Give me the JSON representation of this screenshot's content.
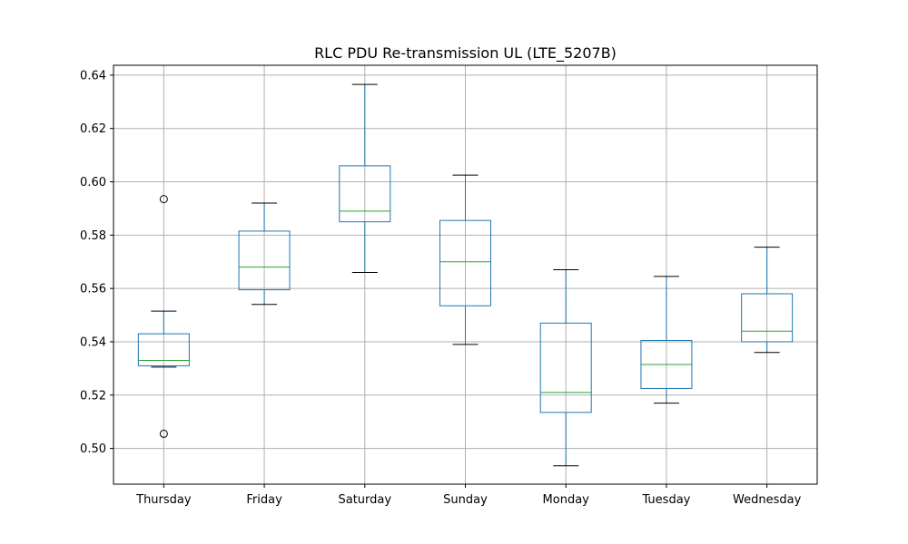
{
  "chart_data": {
    "type": "box",
    "title": "RLC PDU Re-transmission UL (LTE_5207B)",
    "xlabel": "",
    "ylabel": "",
    "categories": [
      "Thursday",
      "Friday",
      "Saturday",
      "Sunday",
      "Monday",
      "Tuesday",
      "Wednesday"
    ],
    "boxes": [
      {
        "whisker_low": 0.5305,
        "q1": 0.531,
        "median": 0.533,
        "q3": 0.543,
        "whisker_high": 0.5515,
        "outliers": [
          0.5935,
          0.5055
        ]
      },
      {
        "whisker_low": 0.554,
        "q1": 0.5595,
        "median": 0.568,
        "q3": 0.5815,
        "whisker_high": 0.592,
        "outliers": []
      },
      {
        "whisker_low": 0.566,
        "q1": 0.585,
        "median": 0.589,
        "q3": 0.606,
        "whisker_high": 0.6365,
        "outliers": []
      },
      {
        "whisker_low": 0.539,
        "q1": 0.5535,
        "median": 0.57,
        "q3": 0.5855,
        "whisker_high": 0.6025,
        "outliers": []
      },
      {
        "whisker_low": 0.4935,
        "q1": 0.5135,
        "median": 0.521,
        "q3": 0.547,
        "whisker_high": 0.567,
        "outliers": []
      },
      {
        "whisker_low": 0.517,
        "q1": 0.5225,
        "median": 0.5315,
        "q3": 0.5405,
        "whisker_high": 0.5645,
        "outliers": []
      },
      {
        "whisker_low": 0.536,
        "q1": 0.54,
        "median": 0.544,
        "q3": 0.558,
        "whisker_high": 0.5755,
        "outliers": []
      }
    ],
    "yticks": [
      "0.50",
      "0.52",
      "0.54",
      "0.56",
      "0.58",
      "0.60",
      "0.62",
      "0.64"
    ],
    "ylim": [
      0.4866,
      0.6437
    ],
    "grid": true,
    "legend": "none",
    "colors": {
      "box": "#1f77b4",
      "median": "#2ca02c",
      "whisker_cap": "#000000",
      "grid": "#b0b0b0",
      "outlier": "#000000"
    }
  }
}
